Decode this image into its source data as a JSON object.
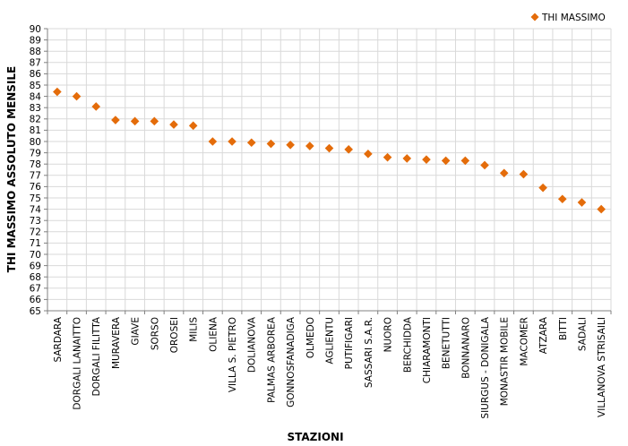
{
  "chart_data": {
    "type": "scatter",
    "xlabel": "STAZIONI",
    "ylabel": "THI MASSIMO ASSOLUTO MENSILE",
    "ylim": [
      65,
      90
    ],
    "ytick_step": 1,
    "grid": true,
    "legend_position": "top-right",
    "marker": "diamond",
    "colors": {
      "series": "#E46C0A",
      "grid": "#D9D9D9",
      "axis": "#808080"
    },
    "categories": [
      "SARDARA",
      "DORGALI LANAITTO",
      "DORGALI FILITTA",
      "MURAVERA",
      "GIAVE",
      "SORSO",
      "OROSEI",
      "MILIS",
      "OLIENA",
      "VILLA S. PIETRO",
      "DOLIANOVA",
      "PALMAS ARBOREA",
      "GONNOSFANADIGA",
      "OLMEDO",
      "AGLIENTU",
      "PUTIFIGARI",
      "SASSARI S.A.R.",
      "NUORO",
      "BERCHIDDA",
      "CHIARAMONTI",
      "BENETUTTI",
      "BONNANARO",
      "SIURGUS - DONIGALA",
      "MONASTIR MOBILE",
      "MACOMER",
      "ATZARA",
      "BITTI",
      "SADALI",
      "VILLANOVA STRISAILI"
    ],
    "series": [
      {
        "name": "THI MASSIMO",
        "values": [
          84.4,
          84.0,
          83.1,
          81.9,
          81.8,
          81.8,
          81.5,
          81.4,
          80.0,
          80.0,
          79.9,
          79.8,
          79.7,
          79.6,
          79.4,
          79.3,
          78.9,
          78.6,
          78.5,
          78.4,
          78.3,
          78.3,
          77.9,
          77.2,
          77.1,
          75.9,
          74.9,
          74.6,
          74.0
        ]
      }
    ]
  }
}
